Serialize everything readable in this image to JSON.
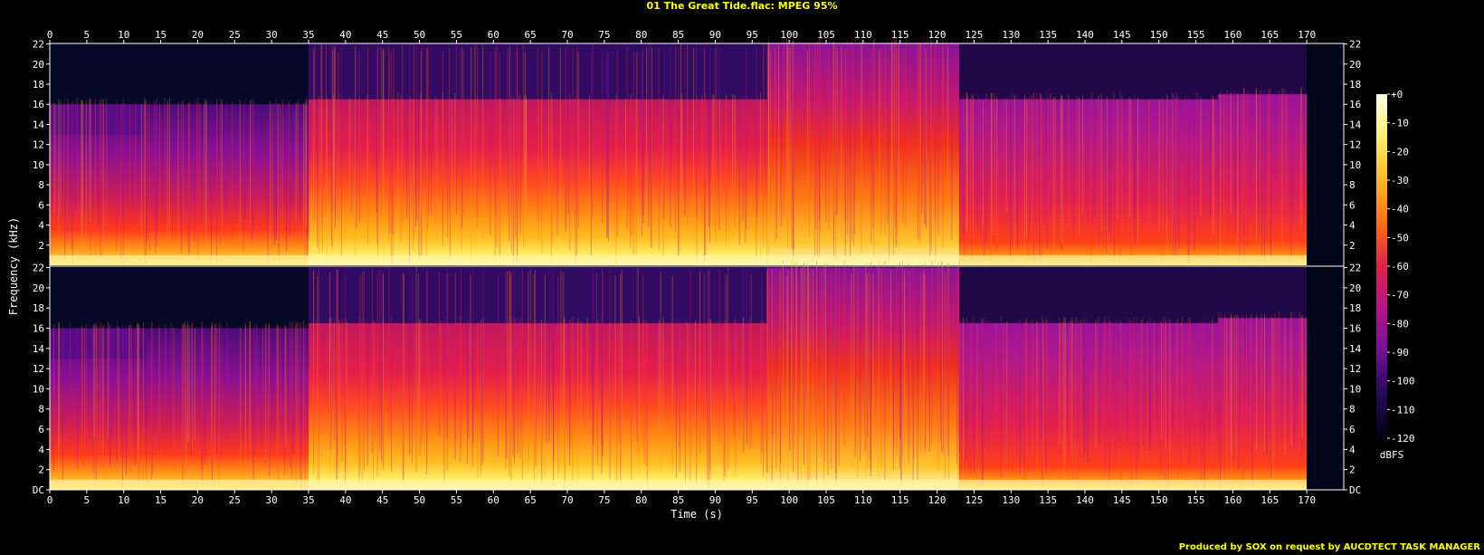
{
  "header": {
    "title": "01 The Great Tide.flac: MPEG 95%"
  },
  "footer": {
    "credit": "Produced by SOX on request by AUCDTECT TASK MANAGER"
  },
  "colors": {
    "background": "#000000",
    "title": "#ffff00",
    "axis": "#ffffff",
    "palette": [
      "#000010",
      "#0a0a40",
      "#3a0a6e",
      "#7a0f9a",
      "#b5148a",
      "#e41f4a",
      "#ff3a1a",
      "#ff7a10",
      "#ffb820",
      "#fff070",
      "#ffffe8"
    ]
  },
  "chart_data": {
    "type": "heatmap",
    "chart_kind": "spectrogram",
    "channels": 2,
    "xlabel": "Time (s)",
    "ylabel": "Frequency (kHz)",
    "colorbar_label": "dBFS",
    "xlim": [
      0,
      175
    ],
    "ylim": [
      0,
      22.05
    ],
    "x_ticks": [
      "0",
      "5",
      "10",
      "15",
      "20",
      "25",
      "30",
      "35",
      "40",
      "45",
      "50",
      "55",
      "60",
      "65",
      "70",
      "75",
      "80",
      "85",
      "90",
      "95",
      "100",
      "105",
      "110",
      "115",
      "120",
      "125",
      "130",
      "135",
      "140",
      "145",
      "150",
      "155",
      "160",
      "165",
      "170"
    ],
    "y_ticks_top": [
      "2",
      "4",
      "6",
      "8",
      "10",
      "12",
      "14",
      "16",
      "18",
      "20",
      "22"
    ],
    "y_ticks_bottom": [
      "DC",
      "2",
      "4",
      "6",
      "8",
      "10",
      "12",
      "14",
      "16",
      "18",
      "20",
      "22"
    ],
    "colorbar_range": [
      -120,
      0
    ],
    "colorbar_ticks": [
      "+0",
      "-10",
      "-20",
      "-30",
      "-40",
      "-50",
      "-60",
      "-70",
      "-80",
      "-90",
      "-100",
      "-110",
      "-120"
    ],
    "lowpass_cutoff_segments_khz": [
      {
        "start": 0,
        "end": 13,
        "cutoff": 16
      },
      {
        "start": 13,
        "end": 35,
        "cutoff": 16
      },
      {
        "start": 35,
        "end": 97,
        "cutoff": 16.5
      },
      {
        "start": 97,
        "end": 123,
        "cutoff": 22
      },
      {
        "start": 123,
        "end": 158,
        "cutoff": 16.5
      },
      {
        "start": 158,
        "end": 170,
        "cutoff": 17
      }
    ]
  }
}
